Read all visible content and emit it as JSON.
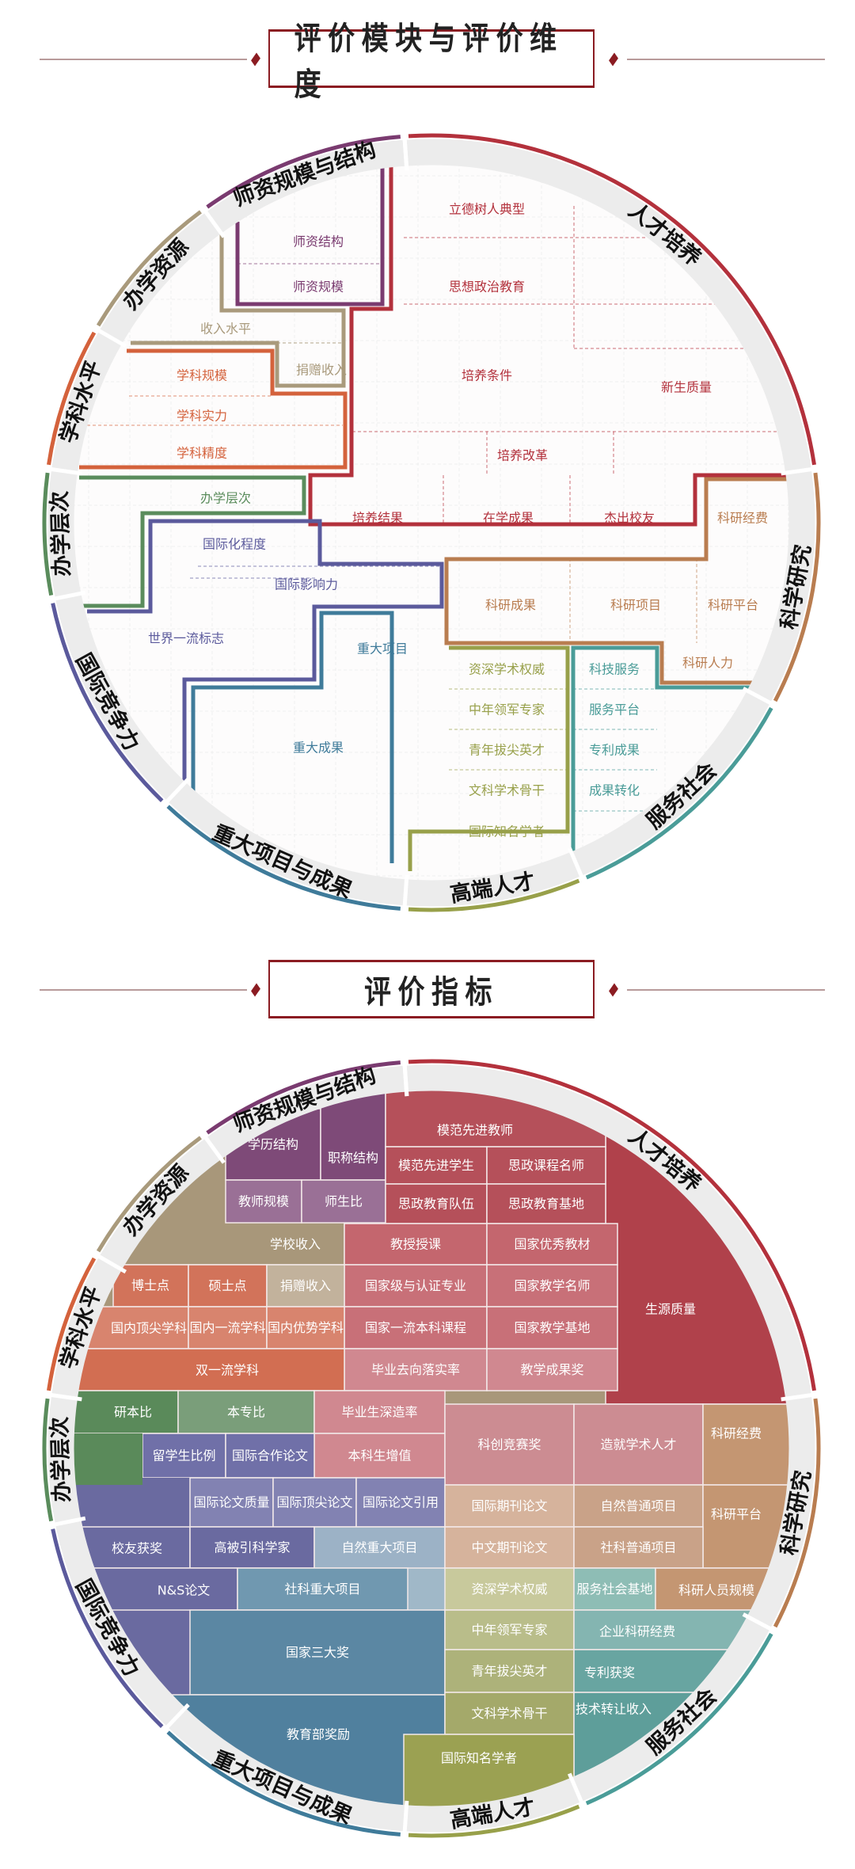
{
  "headers": [
    {
      "title": "评价模块与评价维度"
    },
    {
      "title": "评价指标"
    }
  ],
  "modules": [
    {
      "name": "人才培养",
      "color": "#b3313c",
      "dimensions": [
        "立德树人典型",
        "思想政治教育",
        "培养条件",
        "新生质量",
        "培养改革",
        "培养结果",
        "在学成果",
        "杰出校友"
      ]
    },
    {
      "name": "科学研究",
      "color": "#b97d50",
      "dimensions": [
        "科研经费",
        "科研成果",
        "科研项目",
        "科研平台",
        "科研人力"
      ]
    },
    {
      "name": "服务社会",
      "color": "#4a9c98",
      "dimensions": [
        "科技服务",
        "服务平台",
        "专利成果",
        "成果转化"
      ]
    },
    {
      "name": "高端人才",
      "color": "#98a04a",
      "dimensions": [
        "资深学术权威",
        "中年领军专家",
        "青年拔尖英才",
        "文科学术骨干",
        "国际知名学者"
      ]
    },
    {
      "name": "重大项目与成果",
      "color": "#3f7b9a",
      "dimensions": [
        "重大项目",
        "重大成果"
      ]
    },
    {
      "name": "国际竞争力",
      "color": "#5b5a9c",
      "dimensions": [
        "国际化程度",
        "国际影响力",
        "世界一流标志"
      ]
    },
    {
      "name": "办学层次",
      "color": "#5a8c5c",
      "dimensions": [
        "办学层次"
      ]
    },
    {
      "name": "学科水平",
      "color": "#d4623c",
      "dimensions": [
        "学科规模",
        "学科实力",
        "学科精度"
      ]
    },
    {
      "name": "办学资源",
      "color": "#a99a7c",
      "dimensions": [
        "收入水平",
        "捐赠收入"
      ]
    },
    {
      "name": "师资规模与结构",
      "color": "#7a3b70",
      "dimensions": [
        "师资结构",
        "师资规模"
      ]
    }
  ],
  "indicators": [
    {
      "label": "学校收入",
      "color": "#a8977a"
    },
    {
      "label": "生源质量",
      "color": "#b0414b"
    },
    {
      "label": "学历结构",
      "color": "#7e4a78"
    },
    {
      "label": "职称结构",
      "color": "#7e4a78"
    },
    {
      "label": "教师规模",
      "color": "#9a7096"
    },
    {
      "label": "师生比",
      "color": "#9a7096"
    },
    {
      "label": "模范先进教师",
      "color": "#b5505a"
    },
    {
      "label": "模范先进学生",
      "color": "#b5505a"
    },
    {
      "label": "思政课程名师",
      "color": "#b5505a"
    },
    {
      "label": "思政教育队伍",
      "color": "#b5505a"
    },
    {
      "label": "思政教育基地",
      "color": "#b5505a"
    },
    {
      "label": "教授授课",
      "color": "#c4666e"
    },
    {
      "label": "国家优秀教材",
      "color": "#c4666e"
    },
    {
      "label": "国家级与认证专业",
      "color": "#c87078"
    },
    {
      "label": "国家教学名师",
      "color": "#c87078"
    },
    {
      "label": "国家一流本科课程",
      "color": "#c87078"
    },
    {
      "label": "国家教学基地",
      "color": "#c87078"
    },
    {
      "label": "毕业去向落实率",
      "color": "#d08890"
    },
    {
      "label": "教学成果奖",
      "color": "#d08890"
    },
    {
      "label": "博士点",
      "color": "#d2735a"
    },
    {
      "label": "硕士点",
      "color": "#d2735a"
    },
    {
      "label": "捐赠收入",
      "color": "#c2b29c"
    },
    {
      "label": "国内顶尖学科",
      "color": "#d8846e"
    },
    {
      "label": "国内一流学科",
      "color": "#d8846e"
    },
    {
      "label": "国内优势学科",
      "color": "#d8846e"
    },
    {
      "label": "双一流学科",
      "color": "#d26e52"
    },
    {
      "label": "研本比",
      "color": "#5a8a5a"
    },
    {
      "label": "本专比",
      "color": "#7a9e7a"
    },
    {
      "label": "毕业生深造率",
      "color": "#d08890"
    },
    {
      "label": "本科生增值",
      "color": "#d08890"
    },
    {
      "label": "留学生比例",
      "color": "#7070a8"
    },
    {
      "label": "国际合作论文",
      "color": "#7070a8"
    },
    {
      "label": "科创竞赛奖",
      "color": "#cc8c92"
    },
    {
      "label": "造就学术人才",
      "color": "#cc8c92"
    },
    {
      "label": "科研经费",
      "color": "#c49672"
    },
    {
      "label": "国际论文质量",
      "color": "#8282b2"
    },
    {
      "label": "国际顶尖论文",
      "color": "#8282b2"
    },
    {
      "label": "国际论文引用",
      "color": "#8282b2"
    },
    {
      "label": "国际期刊论文",
      "color": "#d6b39c"
    },
    {
      "label": "自然普通项目",
      "color": "#c9a288"
    },
    {
      "label": "科研平台",
      "color": "#c49672"
    },
    {
      "label": "校友获奖",
      "color": "#6a6aa0"
    },
    {
      "label": "高被引科学家",
      "color": "#6a6aa0"
    },
    {
      "label": "自然重大项目",
      "color": "#9cb2c6"
    },
    {
      "label": "中文期刊论文",
      "color": "#d6b39c"
    },
    {
      "label": "社科普通项目",
      "color": "#c9a288"
    },
    {
      "label": "N&S论文",
      "color": "#6a6aa0"
    },
    {
      "label": "社科重大项目",
      "color": "#7098b0"
    },
    {
      "label": "资深学术权威",
      "color": "#c8c99c"
    },
    {
      "label": "服务社会基地",
      "color": "#8ebdb5"
    },
    {
      "label": "科研人员规模",
      "color": "#c49672"
    },
    {
      "label": "国家三大奖",
      "color": "#5b87a3"
    },
    {
      "label": "中年领军专家",
      "color": "#b9bd8a"
    },
    {
      "label": "企业科研经费",
      "color": "#84b5b1"
    },
    {
      "label": "青年拔尖英才",
      "color": "#adb27a"
    },
    {
      "label": "专利获奖",
      "color": "#68a5a1"
    },
    {
      "label": "教育部奖励",
      "color": "#50809e"
    },
    {
      "label": "文科学术骨干",
      "color": "#a4a96a"
    },
    {
      "label": "技术转让收入",
      "color": "#5e9e9a"
    },
    {
      "label": "国际知名学者",
      "color": "#9ba152"
    }
  ]
}
